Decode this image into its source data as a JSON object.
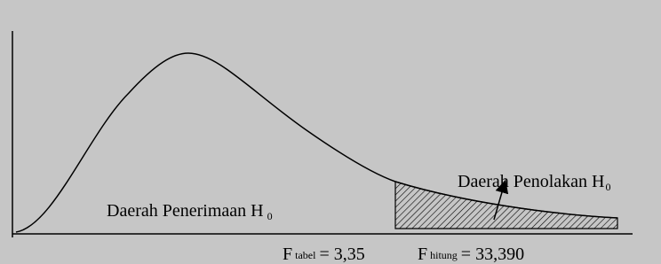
{
  "regions": {
    "acceptance": {
      "label": "Daerah Penerimaan H",
      "subscript": "0"
    },
    "rejection": {
      "label": "Daerah Penolakan H",
      "subscript": "0"
    }
  },
  "critical_values": [
    {
      "symbol": "F",
      "subscript": "tabel",
      "value_text": "= 3,35"
    },
    {
      "symbol": "F",
      "subscript": "hitung",
      "value_text": "= 33,390"
    }
  ]
}
